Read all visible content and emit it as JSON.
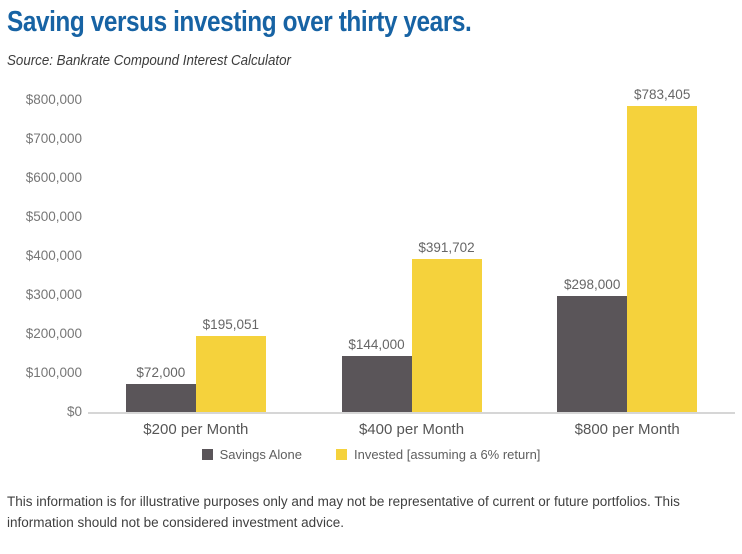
{
  "header": {
    "title": "Saving versus investing over thirty years.",
    "source": "Source: Bankrate Compound Interest Calculator"
  },
  "chart_data": {
    "type": "bar",
    "title": "Saving versus investing over thirty years.",
    "subtitle": "Source: Bankrate Compound Interest Calculator",
    "categories": [
      "$200 per Month",
      "$400 per Month",
      "$800 per Month"
    ],
    "series": [
      {
        "name": "Savings Alone",
        "color": "#5A5559",
        "values": [
          72000,
          144000,
          298000
        ],
        "labels": [
          "$72,000",
          "$144,000",
          "$298,000"
        ]
      },
      {
        "name": "Invested [assuming a 6% return]",
        "color": "#F5D23C",
        "values": [
          195051,
          391702,
          783405
        ],
        "labels": [
          "$195,051",
          "$391,702",
          "$783,405"
        ]
      }
    ],
    "xlabel": "",
    "ylabel": "",
    "ylim": [
      0,
      800000
    ],
    "ytick_step": 100000,
    "ytick_labels": [
      "$0",
      "$100,000",
      "$200,000",
      "$300,000",
      "$400,000",
      "$500,000",
      "$600,000",
      "$700,000",
      "$800,000"
    ],
    "grid": false,
    "legend_position": "bottom"
  },
  "footer": {
    "disclaimer": "This information is for illustrative purposes only and may not be representative of current or future portfolios. This information should not be considered investment advice."
  },
  "colors": {
    "title": "#1763A4",
    "axis_text": "#777777",
    "data_label": "#666666",
    "baseline": "#D6D6D6",
    "background": "#FFFFFF"
  }
}
